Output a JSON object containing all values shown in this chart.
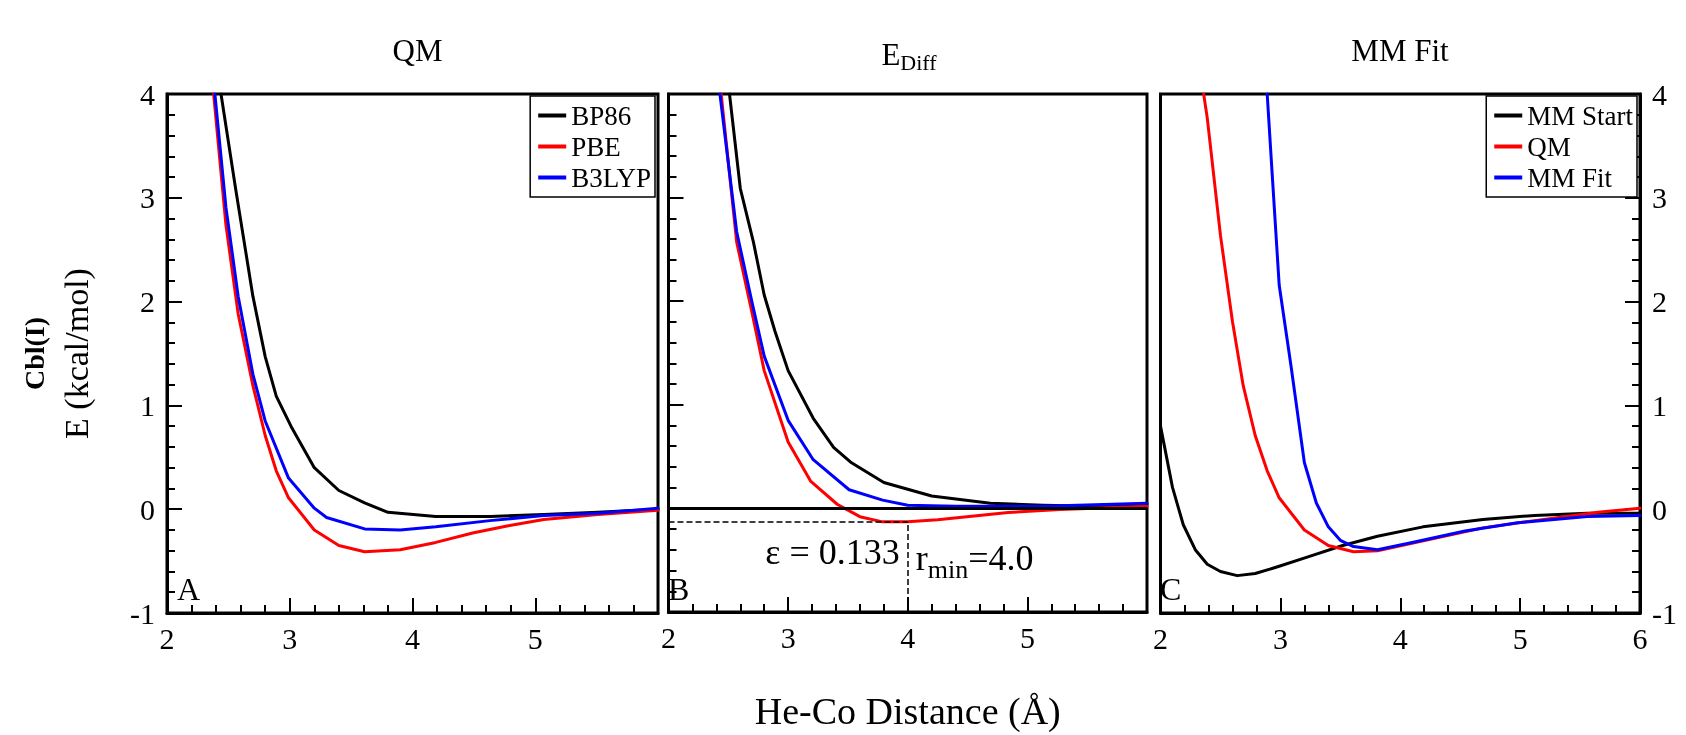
{
  "chart_data": [
    {
      "type": "line",
      "title": "QM",
      "ylabel": "Cbl(I)\nE (kcal/mol)",
      "xlim": [
        2,
        6
      ],
      "xticks": [
        2,
        3,
        4,
        5,
        {
          "value": 6,
          "label": null
        }
      ],
      "ylim": [
        -1,
        4
      ],
      "yticks": [
        -1,
        0,
        1,
        2,
        3,
        4
      ],
      "legend": "top right",
      "marker": "none",
      "line_style": "solid",
      "annotations": [
        "A"
      ],
      "series": [
        {
          "name": "BP86",
          "color": "#000000",
          "x": [
            2.44,
            2.56,
            2.7,
            2.8,
            2.89,
            3.01,
            3.2,
            3.4,
            3.61,
            3.8,
            4.19,
            4.63,
            5.07,
            5.51,
            6
          ],
          "values": [
            4,
            3.08,
            2.05,
            1.47,
            1.09,
            0.8,
            0.4,
            0.18,
            0.06,
            -0.03,
            -0.07,
            -0.07,
            -0.05,
            -0.03,
            0
          ]
        },
        {
          "name": "PBE",
          "color": "#ff0000",
          "x": [
            2.38,
            2.48,
            2.58,
            2.7,
            2.8,
            2.89,
            2.99,
            3.2,
            3.4,
            3.61,
            3.9,
            4.19,
            4.49,
            4.78,
            5.07,
            5.51,
            6
          ],
          "values": [
            4,
            2.74,
            1.88,
            1.19,
            0.71,
            0.37,
            0.11,
            -0.2,
            -0.35,
            -0.41,
            -0.39,
            -0.32,
            -0.23,
            -0.16,
            -0.1,
            -0.05,
            -0.01
          ]
        },
        {
          "name": "B3LYP",
          "color": "#0000ff",
          "x": [
            2.39,
            2.48,
            2.58,
            2.7,
            2.8,
            2.99,
            3.2,
            3.3,
            3.61,
            3.9,
            4.19,
            4.63,
            5.07,
            5.51,
            6
          ],
          "values": [
            4,
            2.91,
            2.05,
            1.3,
            0.85,
            0.3,
            0.01,
            -0.08,
            -0.19,
            -0.2,
            -0.17,
            -0.11,
            -0.06,
            -0.04,
            0.01
          ]
        }
      ]
    },
    {
      "type": "line",
      "title": "E$_{Diff}$",
      "xlabel": "He-Co Distance (Å)",
      "xlim": [
        2,
        6
      ],
      "xticks": [
        2,
        3,
        4,
        5,
        {
          "value": 6,
          "label": null
        }
      ],
      "ylim": [
        -1,
        4
      ],
      "yticks": [
        -1,
        0,
        1,
        2,
        3,
        4
      ],
      "tick_labels": "x",
      "marker": "none",
      "line_style": "solid",
      "annotations": [
        "B",
        "ε = 0.133",
        "r$_{min}$=4.0"
      ],
      "ref_lines": [
        {
          "axis": "y",
          "value": 0,
          "color": "#000000",
          "line_style": "solid"
        },
        {
          "axis": "y",
          "value": -0.133,
          "color": "#000000",
          "line_style": "dashed"
        },
        {
          "axis": "x",
          "value": 4,
          "color": "#000000",
          "line_style": "dashed"
        }
      ],
      "series": [
        {
          "color": "#000000",
          "x": [
            2.51,
            2.6,
            2.71,
            2.8,
            2.89,
            3.0,
            3.21,
            3.38,
            3.53,
            3.8,
            4.2,
            4.69,
            5.13,
            5.56,
            6
          ],
          "values": [
            4,
            3.09,
            2.57,
            2.06,
            1.71,
            1.33,
            0.87,
            0.59,
            0.44,
            0.25,
            0.12,
            0.05,
            0.03,
            0.02,
            0.04
          ]
        },
        {
          "color": "#ff0000",
          "x": [
            2.44,
            2.57,
            2.7,
            2.8,
            3.0,
            3.19,
            3.41,
            3.6,
            3.79,
            4.0,
            4.25,
            4.84,
            5.27,
            6
          ],
          "values": [
            4,
            2.57,
            1.88,
            1.33,
            0.64,
            0.26,
            0.04,
            -0.08,
            -0.13,
            -0.13,
            -0.11,
            -0.04,
            -0.01,
            0.02
          ]
        },
        {
          "color": "#0000ff",
          "x": [
            2.43,
            2.57,
            2.7,
            2.8,
            3.0,
            3.21,
            3.51,
            3.79,
            4.0,
            4.4,
            5.13,
            6
          ],
          "values": [
            4,
            2.67,
            1.98,
            1.47,
            0.85,
            0.47,
            0.18,
            0.08,
            0.03,
            0.02,
            0.02,
            0.05
          ]
        }
      ]
    },
    {
      "type": "line",
      "title": "MM Fit",
      "xlim": [
        2,
        6
      ],
      "xticks": [
        2,
        3,
        4,
        5,
        6
      ],
      "ylim": [
        -1,
        4
      ],
      "yticks": [
        -1,
        0,
        1,
        2,
        3,
        4
      ],
      "legend": "top right",
      "marker": "none",
      "line_style": "solid",
      "annotations": [
        "C"
      ],
      "series": [
        {
          "name": "MM Start",
          "color": "#000000",
          "x": [
            2,
            2.1,
            2.19,
            2.29,
            2.39,
            2.5,
            2.64,
            2.79,
            2.99,
            3.23,
            3.52,
            3.81,
            4.19,
            4.69,
            5.12,
            5.56,
            6
          ],
          "values": [
            0.8,
            0.21,
            -0.15,
            -0.39,
            -0.53,
            -0.6,
            -0.64,
            -0.62,
            -0.55,
            -0.46,
            -0.35,
            -0.26,
            -0.17,
            -0.1,
            -0.06,
            -0.04,
            -0.04
          ]
        },
        {
          "name": "QM",
          "color": "#ff0000",
          "x": [
            2.36,
            2.39,
            2.5,
            2.6,
            2.69,
            2.79,
            2.89,
            2.99,
            3.2,
            3.4,
            3.61,
            3.81,
            4.25,
            4.69,
            5.12,
            5.65,
            6
          ],
          "values": [
            4,
            3.77,
            2.64,
            1.81,
            1.19,
            0.71,
            0.37,
            0.11,
            -0.2,
            -0.35,
            -0.41,
            -0.4,
            -0.29,
            -0.18,
            -0.11,
            -0.03,
            0.01
          ]
        },
        {
          "name": "MM Fit",
          "color": "#0000ff",
          "x": [
            2.89,
            2.93,
            2.99,
            3.09,
            3.2,
            3.3,
            3.4,
            3.5,
            3.61,
            3.81,
            4.1,
            4.54,
            4.98,
            5.56,
            6
          ],
          "values": [
            4,
            3.26,
            2.16,
            1.37,
            0.45,
            0.06,
            -0.17,
            -0.3,
            -0.36,
            -0.39,
            -0.32,
            -0.21,
            -0.13,
            -0.07,
            -0.06
          ]
        }
      ]
    }
  ]
}
